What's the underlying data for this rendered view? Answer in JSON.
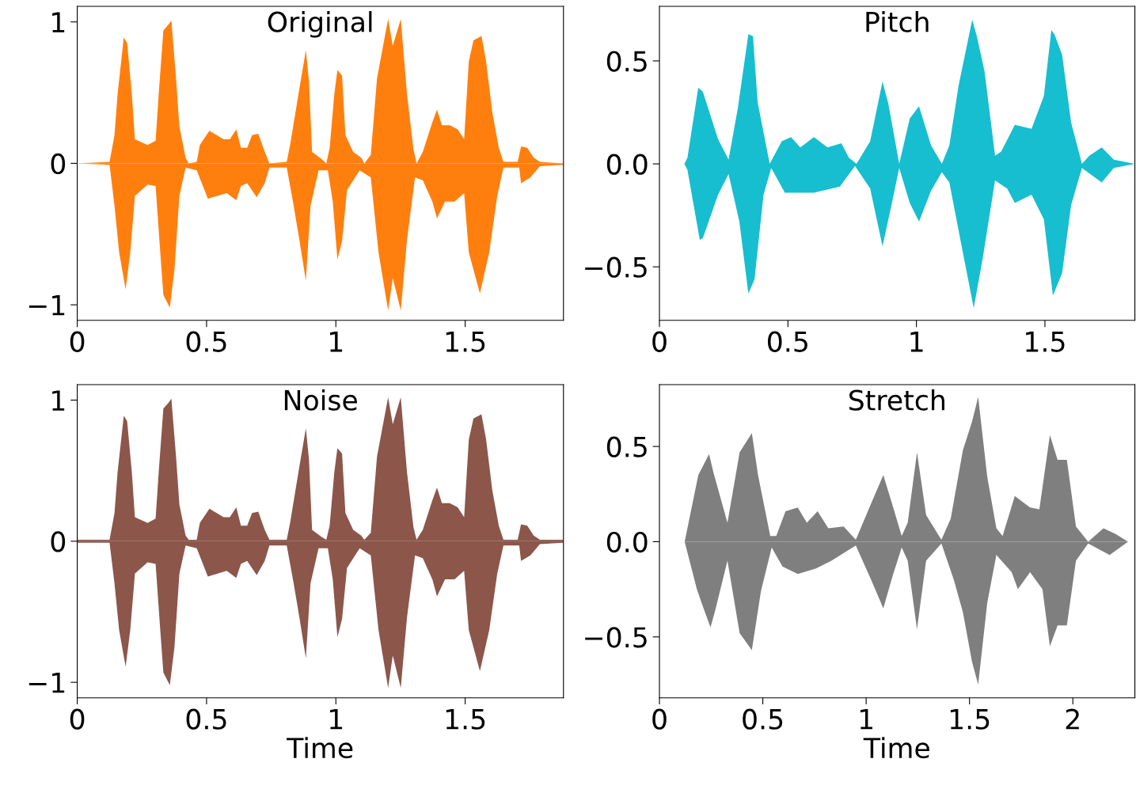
{
  "chart_data": [
    {
      "type": "area",
      "title": "Original",
      "xlim": [
        0,
        1.88
      ],
      "ylim": [
        -1.11,
        1.11
      ],
      "xticks": [
        0,
        0.5,
        1,
        1.5
      ],
      "yticks": [
        {
          "value": -1,
          "label": "−1"
        },
        0,
        1
      ],
      "series": [
        {
          "color": "#ff7f0e",
          "x": [
            0,
            0.125,
            0.144,
            0.156,
            0.18,
            0.193,
            0.211,
            0.223,
            0.272,
            0.303,
            0.315,
            0.333,
            0.352,
            0.364,
            0.382,
            0.395,
            0.419,
            0.431,
            0.462,
            0.474,
            0.511,
            0.566,
            0.59,
            0.615,
            0.633,
            0.657,
            0.676,
            0.7,
            0.725,
            0.743,
            0.81,
            0.823,
            0.859,
            0.884,
            0.896,
            0.908,
            0.945,
            0.963,
            0.976,
            0.994,
            1.006,
            1.024,
            1.037,
            1.067,
            1.098,
            1.11,
            1.135,
            1.159,
            1.202,
            1.22,
            1.251,
            1.275,
            1.3,
            1.312,
            1.336,
            1.373,
            1.391,
            1.41,
            1.44,
            1.471,
            1.496,
            1.514,
            1.532,
            1.563,
            1.581,
            1.605,
            1.63,
            1.648,
            1.703,
            1.716,
            1.74,
            1.765,
            1.789,
            1.88
          ],
          "values": [
            0,
            0.01,
            0.2,
            0.49,
            0.89,
            0.85,
            0.49,
            0.17,
            0.13,
            0.16,
            0.49,
            0.94,
            0.98,
            1.01,
            0.6,
            0.26,
            0.04,
            0,
            0.01,
            0.13,
            0.23,
            0.17,
            0.17,
            0.24,
            0.11,
            0.11,
            0.2,
            0.21,
            0.08,
            0,
            0.01,
            0.13,
            0.53,
            0.8,
            0.58,
            0.08,
            0.03,
            0,
            0.11,
            0.49,
            0.66,
            0.62,
            0.2,
            0.08,
            0.04,
            0,
            0.06,
            0.6,
            1.02,
            0.83,
            1.02,
            0.49,
            0.1,
            0,
            0.08,
            0.29,
            0.38,
            0.27,
            0.27,
            0.24,
            0.17,
            0.72,
            0.87,
            0.9,
            0.72,
            0.36,
            0.11,
            0.01,
            0.01,
            0.12,
            0.11,
            0.04,
            0.01,
            0
          ]
        },
        {
          "color": "#ff7f0e",
          "x": [
            0,
            0.125,
            0.144,
            0.162,
            0.187,
            0.205,
            0.223,
            0.272,
            0.303,
            0.321,
            0.333,
            0.358,
            0.376,
            0.395,
            0.419,
            0.462,
            0.505,
            0.578,
            0.615,
            0.633,
            0.657,
            0.694,
            0.725,
            0.743,
            0.81,
            0.835,
            0.859,
            0.884,
            0.902,
            0.933,
            0.969,
            0.988,
            1.006,
            1.024,
            1.043,
            1.092,
            1.135,
            1.165,
            1.202,
            1.22,
            1.251,
            1.275,
            1.306,
            1.336,
            1.373,
            1.391,
            1.422,
            1.459,
            1.496,
            1.514,
            1.557,
            1.593,
            1.624,
            1.648,
            1.709,
            1.716,
            1.752,
            1.789,
            1.88
          ],
          "values": [
            0,
            -0.01,
            -0.3,
            -0.63,
            -0.89,
            -0.63,
            -0.23,
            -0.15,
            -0.16,
            -0.63,
            -0.93,
            -1.02,
            -0.75,
            -0.23,
            -0.03,
            -0.05,
            -0.25,
            -0.21,
            -0.26,
            -0.16,
            -0.14,
            -0.24,
            -0.14,
            -0.03,
            -0.03,
            -0.28,
            -0.54,
            -0.83,
            -0.3,
            -0.05,
            -0.05,
            -0.27,
            -0.68,
            -0.55,
            -0.19,
            -0.05,
            -0.1,
            -0.63,
            -1.04,
            -0.81,
            -1.04,
            -0.54,
            -0.1,
            -0.12,
            -0.27,
            -0.39,
            -0.27,
            -0.27,
            -0.21,
            -0.63,
            -0.92,
            -0.63,
            -0.23,
            -0.03,
            -0.03,
            -0.14,
            -0.1,
            -0.02,
            -0.01
          ]
        }
      ]
    },
    {
      "type": "area",
      "title": "Pitch",
      "xlim": [
        0,
        1.85
      ],
      "ylim": [
        -0.76,
        0.765
      ],
      "xticks": [
        0,
        0.5,
        1,
        1.5
      ],
      "yticks": [
        {
          "value": -0.5,
          "label": "−0.5"
        },
        {
          "value": 0,
          "label": "0.0"
        },
        0.5
      ],
      "series": [
        {
          "color": "#17becf",
          "x": [
            0,
            0.097,
            0.109,
            0.151,
            0.169,
            0.228,
            0.269,
            0.305,
            0.346,
            0.364,
            0.382,
            0.429,
            0.476,
            0.512,
            0.548,
            0.601,
            0.654,
            0.708,
            0.737,
            0.767,
            0.82,
            0.868,
            0.891,
            0.933,
            0.974,
            1.01,
            1.057,
            1.099,
            1.128,
            1.164,
            1.217,
            1.235,
            1.265,
            1.306,
            1.33,
            1.383,
            1.448,
            1.496,
            1.525,
            1.537,
            1.567,
            1.602,
            1.644,
            1.673,
            1.721,
            1.768,
            1.85
          ],
          "values": [
            0,
            0,
            0.03,
            0.37,
            0.35,
            0.12,
            0.02,
            0.27,
            0.63,
            0.62,
            0.3,
            0,
            0.11,
            0.13,
            0.08,
            0.13,
            0.08,
            0.1,
            0.03,
            0,
            0.11,
            0.4,
            0.29,
            0,
            0.22,
            0.28,
            0.09,
            0,
            0.09,
            0.38,
            0.7,
            0.62,
            0.45,
            0.04,
            0.06,
            0.19,
            0.17,
            0.33,
            0.65,
            0.63,
            0.53,
            0.2,
            0,
            0.04,
            0.08,
            0.02,
            0
          ]
        },
        {
          "color": "#17becf",
          "x": [
            0,
            0.097,
            0.109,
            0.157,
            0.169,
            0.228,
            0.269,
            0.311,
            0.346,
            0.37,
            0.405,
            0.435,
            0.488,
            0.524,
            0.601,
            0.702,
            0.761,
            0.82,
            0.868,
            0.903,
            0.933,
            0.974,
            1.01,
            1.057,
            1.099,
            1.128,
            1.176,
            1.223,
            1.259,
            1.306,
            1.353,
            1.383,
            1.448,
            1.496,
            1.531,
            1.567,
            1.602,
            1.644,
            1.721,
            1.768,
            1.85
          ],
          "values": [
            0,
            0,
            -0.03,
            -0.37,
            -0.36,
            -0.15,
            -0.05,
            -0.28,
            -0.63,
            -0.56,
            -0.15,
            -0.02,
            -0.14,
            -0.14,
            -0.14,
            -0.11,
            -0.01,
            -0.12,
            -0.4,
            -0.2,
            -0.02,
            -0.19,
            -0.28,
            -0.13,
            -0.04,
            -0.09,
            -0.4,
            -0.7,
            -0.45,
            -0.08,
            -0.12,
            -0.19,
            -0.15,
            -0.27,
            -0.64,
            -0.53,
            -0.2,
            -0.02,
            -0.09,
            -0.02,
            0
          ]
        }
      ]
    },
    {
      "type": "area",
      "title": "Noise",
      "xlabel": "Time",
      "xlim": [
        0,
        1.88
      ],
      "ylim": [
        -1.11,
        1.11
      ],
      "xticks": [
        0,
        0.5,
        1,
        1.5
      ],
      "yticks": [
        {
          "value": -1,
          "label": "−1"
        },
        0,
        1
      ],
      "series": [
        {
          "color": "#8c564b",
          "x": [
            0,
            0.125,
            0.144,
            0.156,
            0.18,
            0.193,
            0.211,
            0.223,
            0.272,
            0.303,
            0.315,
            0.333,
            0.352,
            0.364,
            0.382,
            0.395,
            0.419,
            0.431,
            0.462,
            0.474,
            0.511,
            0.566,
            0.59,
            0.615,
            0.633,
            0.657,
            0.676,
            0.7,
            0.725,
            0.743,
            0.81,
            0.823,
            0.859,
            0.884,
            0.896,
            0.908,
            0.945,
            0.963,
            0.976,
            0.994,
            1.006,
            1.024,
            1.037,
            1.067,
            1.098,
            1.11,
            1.135,
            1.159,
            1.202,
            1.22,
            1.251,
            1.275,
            1.3,
            1.312,
            1.336,
            1.373,
            1.391,
            1.41,
            1.44,
            1.471,
            1.496,
            1.514,
            1.532,
            1.563,
            1.581,
            1.605,
            1.63,
            1.648,
            1.703,
            1.716,
            1.74,
            1.765,
            1.789,
            1.88
          ],
          "values": [
            0.01,
            0.01,
            0.2,
            0.49,
            0.89,
            0.85,
            0.49,
            0.17,
            0.13,
            0.16,
            0.49,
            0.94,
            0.98,
            1.01,
            0.6,
            0.26,
            0.04,
            0.01,
            0.01,
            0.13,
            0.23,
            0.17,
            0.17,
            0.24,
            0.11,
            0.11,
            0.2,
            0.21,
            0.08,
            0.01,
            0.01,
            0.13,
            0.53,
            0.8,
            0.58,
            0.08,
            0.03,
            0.01,
            0.11,
            0.49,
            0.66,
            0.62,
            0.2,
            0.08,
            0.04,
            0.01,
            0.06,
            0.6,
            1.02,
            0.83,
            1.02,
            0.49,
            0.1,
            0.01,
            0.08,
            0.29,
            0.38,
            0.27,
            0.27,
            0.24,
            0.17,
            0.72,
            0.87,
            0.9,
            0.72,
            0.36,
            0.11,
            0.01,
            0.01,
            0.12,
            0.11,
            0.04,
            0.01,
            0.01
          ]
        },
        {
          "color": "#8c564b",
          "x": [
            0,
            0.125,
            0.144,
            0.162,
            0.187,
            0.205,
            0.223,
            0.272,
            0.303,
            0.321,
            0.333,
            0.358,
            0.376,
            0.395,
            0.419,
            0.462,
            0.505,
            0.578,
            0.615,
            0.633,
            0.657,
            0.694,
            0.725,
            0.743,
            0.81,
            0.835,
            0.859,
            0.884,
            0.902,
            0.933,
            0.969,
            0.988,
            1.006,
            1.024,
            1.043,
            1.092,
            1.135,
            1.165,
            1.202,
            1.22,
            1.251,
            1.275,
            1.306,
            1.336,
            1.373,
            1.391,
            1.422,
            1.459,
            1.496,
            1.514,
            1.557,
            1.593,
            1.624,
            1.648,
            1.709,
            1.716,
            1.752,
            1.789,
            1.88
          ],
          "values": [
            -0.01,
            -0.01,
            -0.3,
            -0.63,
            -0.89,
            -0.63,
            -0.23,
            -0.15,
            -0.16,
            -0.63,
            -0.93,
            -1.02,
            -0.75,
            -0.23,
            -0.03,
            -0.05,
            -0.25,
            -0.21,
            -0.26,
            -0.16,
            -0.14,
            -0.24,
            -0.14,
            -0.03,
            -0.03,
            -0.28,
            -0.54,
            -0.83,
            -0.3,
            -0.05,
            -0.05,
            -0.27,
            -0.68,
            -0.55,
            -0.19,
            -0.05,
            -0.1,
            -0.63,
            -1.04,
            -0.81,
            -1.04,
            -0.54,
            -0.1,
            -0.12,
            -0.27,
            -0.39,
            -0.27,
            -0.27,
            -0.21,
            -0.63,
            -0.92,
            -0.63,
            -0.23,
            -0.03,
            -0.03,
            -0.14,
            -0.1,
            -0.02,
            -0.01
          ]
        }
      ]
    },
    {
      "type": "area",
      "title": "Stretch",
      "xlabel": "Time",
      "xlim": [
        0,
        2.3
      ],
      "ylim": [
        -0.82,
        0.825
      ],
      "xticks": [
        0,
        0.5,
        1,
        1.5,
        2
      ],
      "yticks": [
        {
          "value": -0.5,
          "label": "−0.5"
        },
        {
          "value": 0,
          "label": "0.0"
        },
        0.5
      ],
      "series": [
        {
          "color": "#7f7f7f",
          "x": [
            0,
            0.122,
            0.188,
            0.24,
            0.262,
            0.329,
            0.388,
            0.447,
            0.477,
            0.536,
            0.565,
            0.61,
            0.669,
            0.713,
            0.765,
            0.817,
            0.891,
            0.95,
            1.024,
            1.083,
            1.128,
            1.172,
            1.201,
            1.246,
            1.29,
            1.364,
            1.409,
            1.468,
            1.512,
            1.542,
            1.586,
            1.63,
            1.66,
            1.719,
            1.793,
            1.838,
            1.889,
            1.926,
            1.971,
            2.015,
            2.074,
            2.148,
            2.207,
            2.267,
            2.3
          ],
          "values": [
            0,
            0,
            0.35,
            0.46,
            0.36,
            0.1,
            0.47,
            0.57,
            0.35,
            0.03,
            0.03,
            0.16,
            0.18,
            0.1,
            0.16,
            0.07,
            0.08,
            0.01,
            0.2,
            0.35,
            0.19,
            0.03,
            0.1,
            0.47,
            0.14,
            0.01,
            0.12,
            0.48,
            0.63,
            0.76,
            0.34,
            0.07,
            0.03,
            0.24,
            0.18,
            0.17,
            0.56,
            0.43,
            0.43,
            0.08,
            0,
            0.07,
            0.04,
            0,
            0
          ]
        },
        {
          "color": "#7f7f7f",
          "x": [
            0,
            0.122,
            0.181,
            0.21,
            0.247,
            0.27,
            0.329,
            0.388,
            0.447,
            0.491,
            0.543,
            0.595,
            0.669,
            0.758,
            0.832,
            0.95,
            1.024,
            1.083,
            1.128,
            1.172,
            1.201,
            1.246,
            1.29,
            1.364,
            1.424,
            1.468,
            1.512,
            1.542,
            1.586,
            1.63,
            1.704,
            1.734,
            1.793,
            1.853,
            1.889,
            1.926,
            1.971,
            2.015,
            2.074,
            2.178,
            2.267,
            2.3
          ],
          "values": [
            0,
            0,
            -0.25,
            -0.34,
            -0.45,
            -0.36,
            -0.1,
            -0.48,
            -0.57,
            -0.26,
            -0.03,
            -0.13,
            -0.17,
            -0.14,
            -0.1,
            -0.02,
            -0.2,
            -0.35,
            -0.18,
            -0.03,
            -0.1,
            -0.46,
            -0.1,
            -0.01,
            -0.2,
            -0.37,
            -0.63,
            -0.75,
            -0.32,
            -0.07,
            -0.16,
            -0.25,
            -0.16,
            -0.25,
            -0.55,
            -0.44,
            -0.44,
            -0.1,
            -0.01,
            -0.07,
            0,
            0
          ]
        }
      ]
    }
  ]
}
